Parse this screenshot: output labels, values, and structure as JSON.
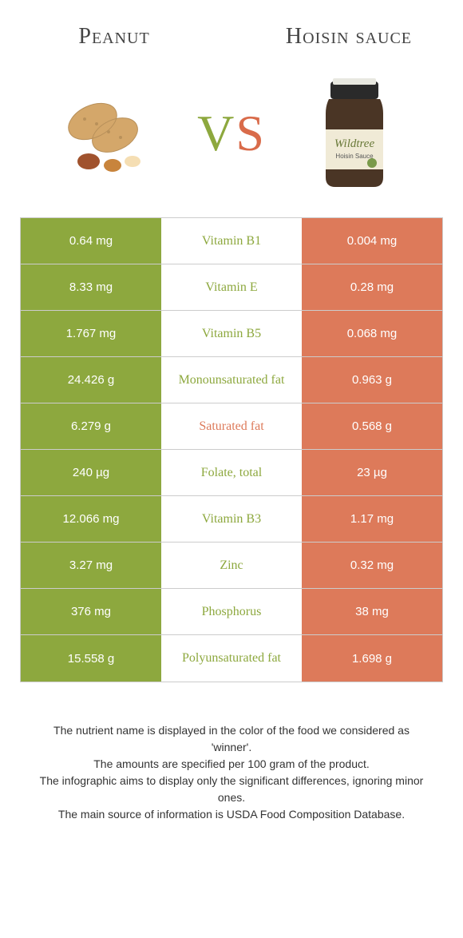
{
  "left_food": "Peanut",
  "right_food": "Hoisin sauce",
  "vs_v": "V",
  "vs_s": "S",
  "colors": {
    "left_bg": "#8da83e",
    "right_bg": "#dd7a5a",
    "left_text": "#8da83e",
    "right_text": "#dd7a5a"
  },
  "rows": [
    {
      "left": "0.64 mg",
      "mid": "Vitamin B1",
      "right": "0.004 mg",
      "winner": "left"
    },
    {
      "left": "8.33 mg",
      "mid": "Vitamin E",
      "right": "0.28 mg",
      "winner": "left"
    },
    {
      "left": "1.767 mg",
      "mid": "Vitamin B5",
      "right": "0.068 mg",
      "winner": "left"
    },
    {
      "left": "24.426 g",
      "mid": "Monounsaturated fat",
      "right": "0.963 g",
      "winner": "left"
    },
    {
      "left": "6.279 g",
      "mid": "Saturated fat",
      "right": "0.568 g",
      "winner": "right"
    },
    {
      "left": "240 µg",
      "mid": "Folate, total",
      "right": "23 µg",
      "winner": "left"
    },
    {
      "left": "12.066 mg",
      "mid": "Vitamin B3",
      "right": "1.17 mg",
      "winner": "left"
    },
    {
      "left": "3.27 mg",
      "mid": "Zinc",
      "right": "0.32 mg",
      "winner": "left"
    },
    {
      "left": "376 mg",
      "mid": "Phosphorus",
      "right": "38 mg",
      "winner": "left"
    },
    {
      "left": "15.558 g",
      "mid": "Polyunsaturated fat",
      "right": "1.698 g",
      "winner": "left"
    }
  ],
  "footer_lines": [
    "The nutrient name is displayed in the color of the food we considered as 'winner'.",
    "The amounts are specified per 100 gram of the product.",
    "The infographic aims to display only the significant differences, ignoring minor ones.",
    "The main source of information is USDA Food Composition Database."
  ],
  "jar_label": "Wildtree",
  "jar_sublabel": "Hoisin Sauce"
}
